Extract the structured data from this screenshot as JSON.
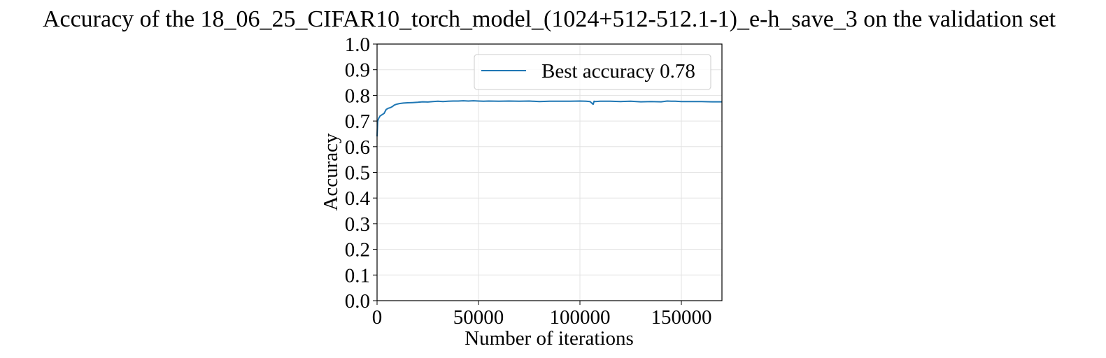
{
  "chart_data": {
    "type": "line",
    "title": "Accuracy of the 18_06_25_CIFAR10_torch_model_(1024+512-512.1-1)_e-h_save_3 on the validation set",
    "xlabel": "Number of iterations",
    "ylabel": "Accuracy",
    "xlim": [
      0,
      170000
    ],
    "ylim": [
      0.0,
      1.0
    ],
    "x_ticks": [
      0,
      50000,
      100000,
      150000
    ],
    "x_tick_labels": [
      "0",
      "50000",
      "100000",
      "150000"
    ],
    "y_ticks": [
      0.0,
      0.1,
      0.2,
      0.3,
      0.4,
      0.5,
      0.6,
      0.7,
      0.8,
      0.9,
      1.0
    ],
    "y_tick_labels": [
      "0.0",
      "0.1",
      "0.2",
      "0.3",
      "0.4",
      "0.5",
      "0.6",
      "0.7",
      "0.8",
      "0.9",
      "1.0"
    ],
    "grid": true,
    "legend_position": "top-right",
    "series": [
      {
        "name": "Best accuracy 0.78",
        "color": "#1f77b4",
        "x": [
          0,
          300,
          800,
          1500,
          2500,
          3500,
          4500,
          5500,
          6500,
          7500,
          8500,
          9500,
          11000,
          13000,
          15000,
          17500,
          20000,
          22500,
          25000,
          27500,
          30000,
          32500,
          35000,
          37500,
          40000,
          42500,
          45000,
          47500,
          50000,
          52500,
          55000,
          60000,
          65000,
          70000,
          75000,
          80000,
          85000,
          90000,
          95000,
          100000,
          103000,
          105000,
          106500,
          107000,
          107500,
          110000,
          115000,
          120000,
          125000,
          130000,
          135000,
          140000,
          143000,
          145000,
          147000,
          150000,
          155000,
          160000,
          165000,
          170000
        ],
        "y": [
          0.64,
          0.7,
          0.71,
          0.72,
          0.725,
          0.73,
          0.745,
          0.75,
          0.752,
          0.756,
          0.762,
          0.765,
          0.768,
          0.77,
          0.771,
          0.772,
          0.773,
          0.775,
          0.774,
          0.776,
          0.777,
          0.776,
          0.777,
          0.778,
          0.778,
          0.779,
          0.778,
          0.779,
          0.778,
          0.777,
          0.778,
          0.777,
          0.778,
          0.777,
          0.778,
          0.776,
          0.777,
          0.777,
          0.777,
          0.778,
          0.777,
          0.776,
          0.765,
          0.777,
          0.776,
          0.777,
          0.777,
          0.776,
          0.777,
          0.775,
          0.776,
          0.775,
          0.778,
          0.777,
          0.777,
          0.776,
          0.776,
          0.776,
          0.775,
          0.775
        ]
      }
    ]
  }
}
